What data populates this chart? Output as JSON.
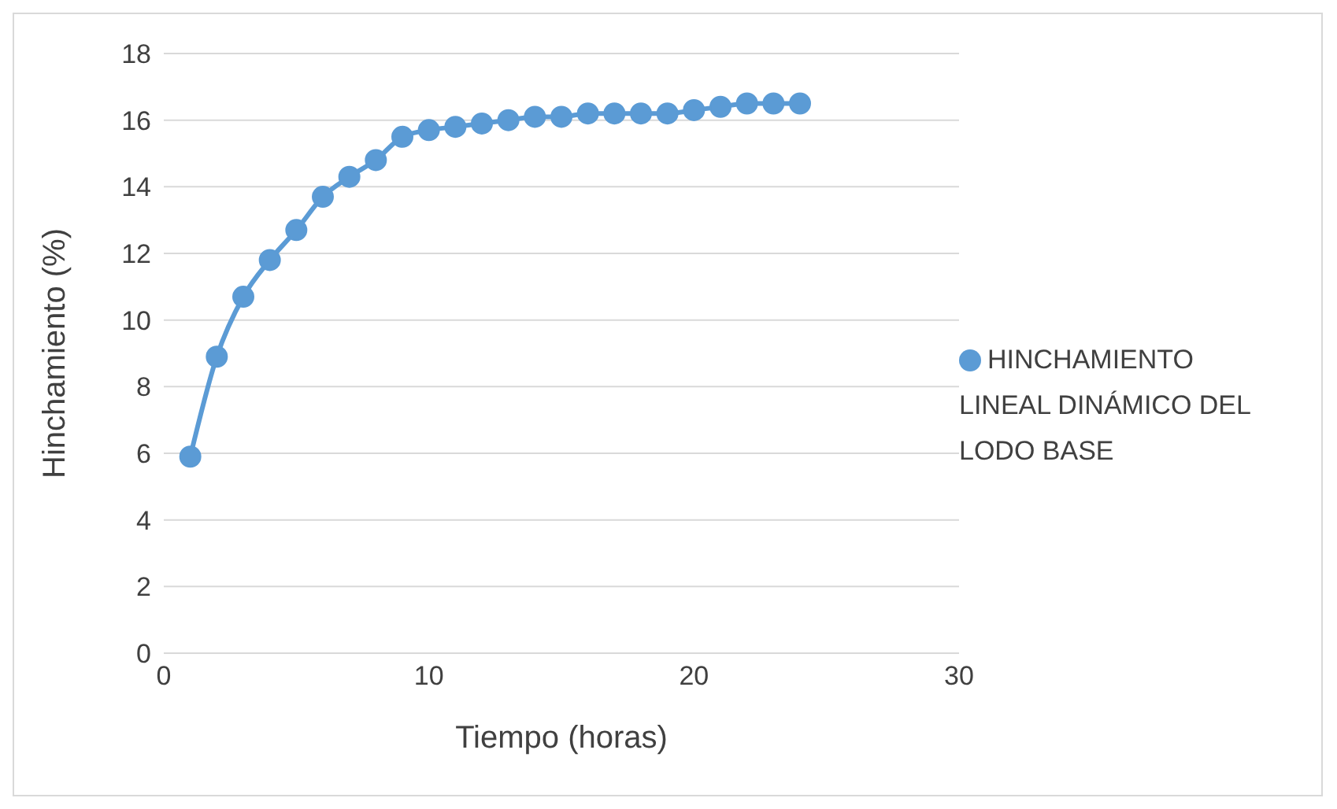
{
  "chart_data": {
    "type": "line",
    "xlabel": "Tiempo (horas)",
    "ylabel": "Hinchamiento (%)",
    "x": [
      1,
      2,
      3,
      4,
      5,
      6,
      7,
      8,
      9,
      10,
      11,
      12,
      13,
      14,
      15,
      16,
      17,
      18,
      19,
      20,
      21,
      22,
      23,
      24
    ],
    "series": [
      {
        "name": "HINCHAMIENTO LINEAL DINÁMICO DEL LODO BASE",
        "color": "#5b9bd5",
        "values": [
          5.9,
          8.9,
          10.7,
          11.8,
          12.7,
          13.7,
          14.3,
          14.8,
          15.5,
          15.7,
          15.8,
          15.9,
          16.0,
          16.1,
          16.1,
          16.2,
          16.2,
          16.2,
          16.2,
          16.3,
          16.4,
          16.5,
          16.5,
          16.5
        ]
      }
    ],
    "xlim": [
      0,
      30
    ],
    "xticks": [
      0,
      10,
      20,
      30
    ],
    "ylim": [
      0,
      18
    ],
    "yticks": [
      0,
      2,
      4,
      6,
      8,
      10,
      12,
      14,
      16,
      18
    ],
    "grid": "y",
    "legend": "right",
    "marker": "circle",
    "line_style": "solid"
  }
}
